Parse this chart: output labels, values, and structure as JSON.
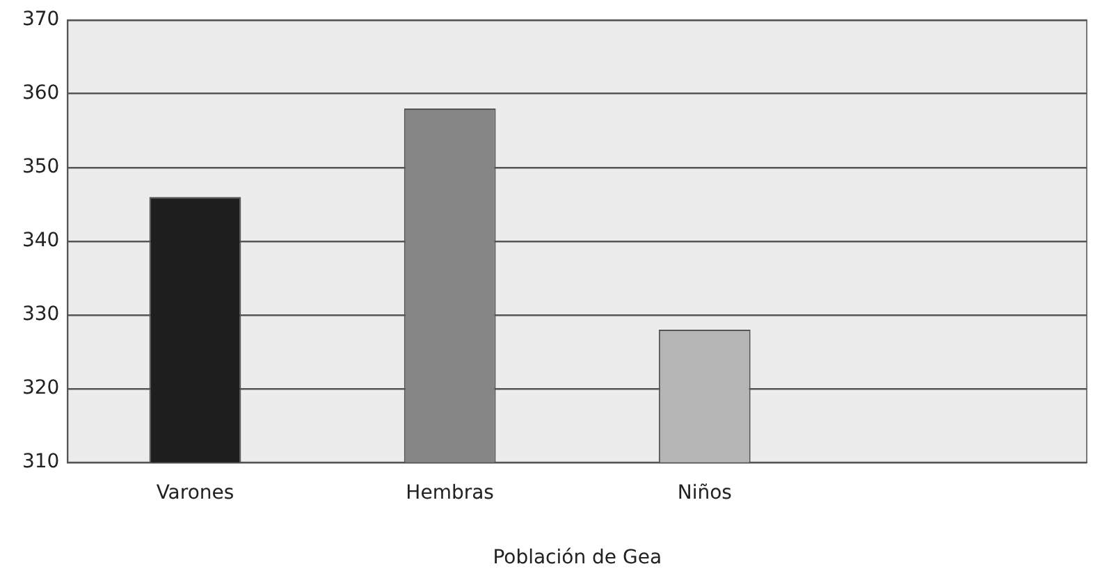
{
  "chart_data": {
    "type": "bar",
    "xlabel": "Población de Gea",
    "categories": [
      "Varones",
      "Hembras",
      "Niños",
      null
    ],
    "values": [
      346,
      358,
      328,
      null
    ],
    "colors": [
      "#1e1e1e",
      "#858585",
      "#b5b5b5",
      "#b5b5b5"
    ],
    "ylim": [
      310,
      370
    ],
    "yticks": [
      310,
      320,
      330,
      340,
      350,
      360,
      370
    ],
    "grid": "y"
  }
}
